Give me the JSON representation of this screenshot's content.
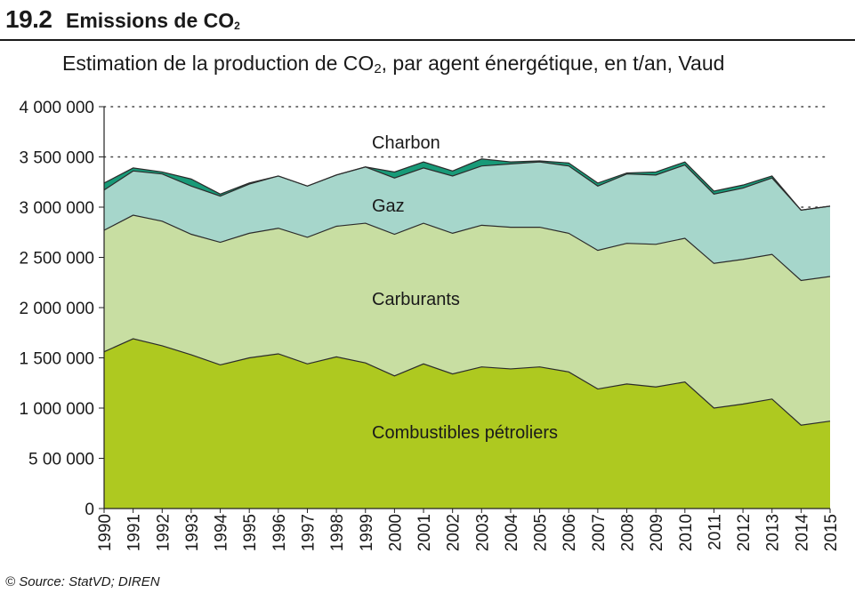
{
  "header": {
    "number": "19.2",
    "title": "Emissions de CO",
    "title_sub": "2"
  },
  "subtitle": {
    "pre": "Estimation de la production de CO",
    "sub": "2",
    "post": ", par agent énergétique, en t/an, Vaud"
  },
  "source": "© Source: StatVD; DIREN",
  "colors": {
    "combustibles": "#aec920",
    "carburants": "#c8dea2",
    "gaz": "#a6d6cb",
    "charbon": "#189a78",
    "line": "#2b2b2b"
  },
  "chart_data": {
    "type": "area",
    "stacked": true,
    "x": [
      "1990",
      "1991",
      "1992",
      "1993",
      "1994",
      "1995",
      "1996",
      "1997",
      "1998",
      "1999",
      "2000",
      "2001",
      "2002",
      "2003",
      "2004",
      "2005",
      "2006",
      "2007",
      "2008",
      "2009",
      "2010",
      "2011",
      "2012",
      "2013",
      "2014",
      "2015"
    ],
    "ylim": [
      0,
      4000000
    ],
    "yticks": [
      0,
      500000,
      1000000,
      1500000,
      2000000,
      2500000,
      3000000,
      3500000,
      4000000
    ],
    "ytick_labels": [
      "0",
      "5 00 000",
      "1 000 000",
      "1 500 000",
      "2 000 000",
      "2 500 000",
      "3 000 000",
      "3 500 000",
      "4 000 000"
    ],
    "grid": "dotted horizontal",
    "series": [
      {
        "name": "Combustibles pétroliers",
        "values": [
          1560000,
          1690000,
          1620000,
          1530000,
          1430000,
          1500000,
          1540000,
          1440000,
          1510000,
          1450000,
          1320000,
          1440000,
          1340000,
          1410000,
          1390000,
          1410000,
          1360000,
          1190000,
          1240000,
          1210000,
          1260000,
          1000000,
          1040000,
          1090000,
          830000,
          870000
        ]
      },
      {
        "name": "Carburants",
        "values": [
          1210000,
          1230000,
          1240000,
          1200000,
          1220000,
          1240000,
          1250000,
          1260000,
          1300000,
          1390000,
          1410000,
          1400000,
          1400000,
          1410000,
          1410000,
          1390000,
          1380000,
          1380000,
          1400000,
          1420000,
          1430000,
          1440000,
          1440000,
          1440000,
          1440000,
          1440000
        ]
      },
      {
        "name": "Gaz",
        "values": [
          400000,
          440000,
          470000,
          480000,
          460000,
          490000,
          520000,
          510000,
          510000,
          560000,
          560000,
          550000,
          570000,
          590000,
          630000,
          650000,
          670000,
          640000,
          690000,
          690000,
          730000,
          690000,
          710000,
          760000,
          700000,
          700000
        ]
      },
      {
        "name": "Charbon",
        "values": [
          70000,
          30000,
          20000,
          70000,
          20000,
          10000,
          0,
          0,
          0,
          0,
          60000,
          60000,
          50000,
          70000,
          20000,
          10000,
          30000,
          30000,
          10000,
          30000,
          30000,
          30000,
          30000,
          20000,
          0,
          0
        ]
      }
    ]
  }
}
